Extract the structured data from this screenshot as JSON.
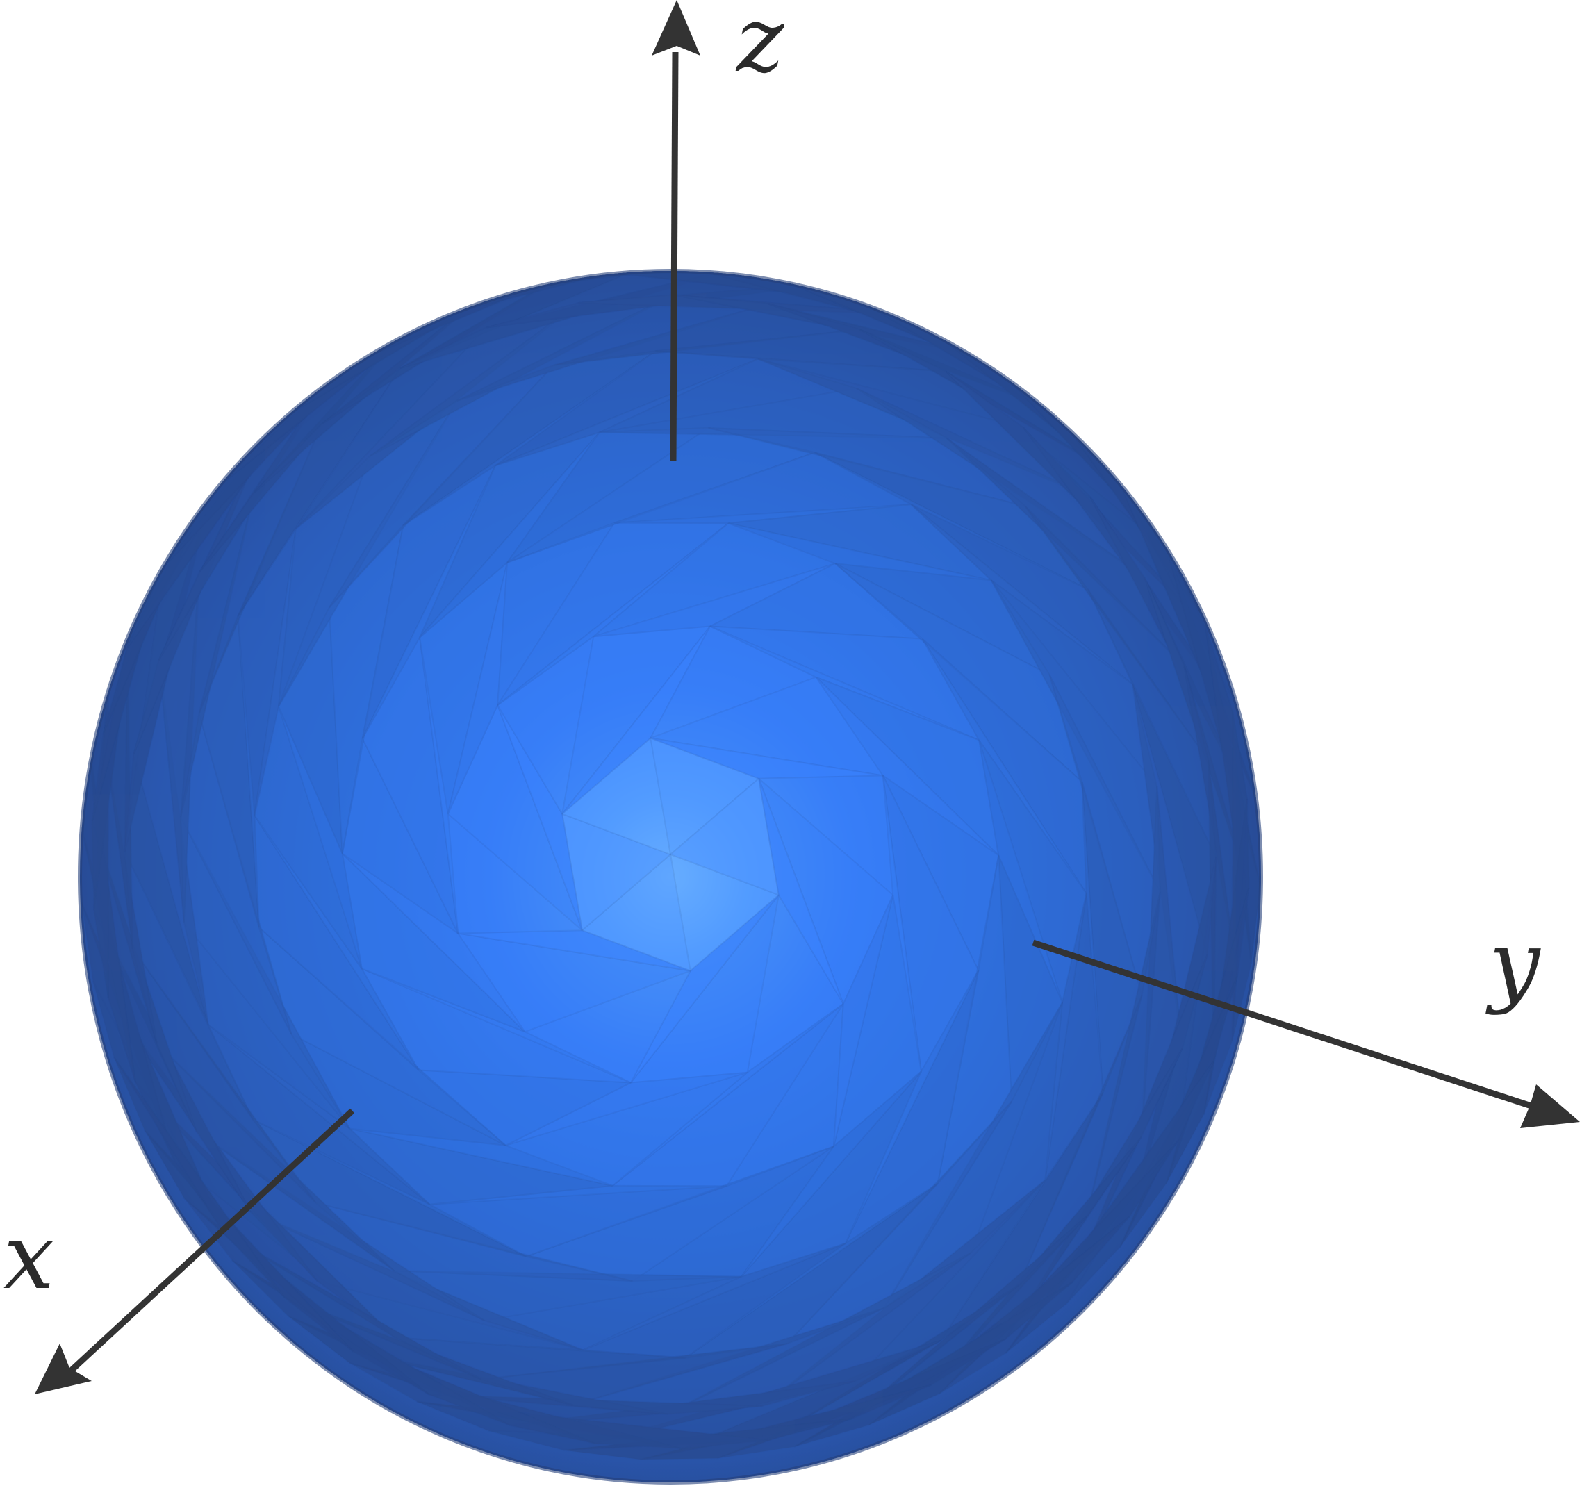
{
  "figure": {
    "background": "#ffffff",
    "sphere": {
      "fill_base": "#2f6fd6",
      "fill_highlight": "#86ccff",
      "fill_edge": "#27478a",
      "style": "faceted-icosphere"
    },
    "axes": {
      "color": "#333333",
      "x": {
        "label": "x"
      },
      "y": {
        "label": "y"
      },
      "z": {
        "label": "z"
      }
    }
  }
}
